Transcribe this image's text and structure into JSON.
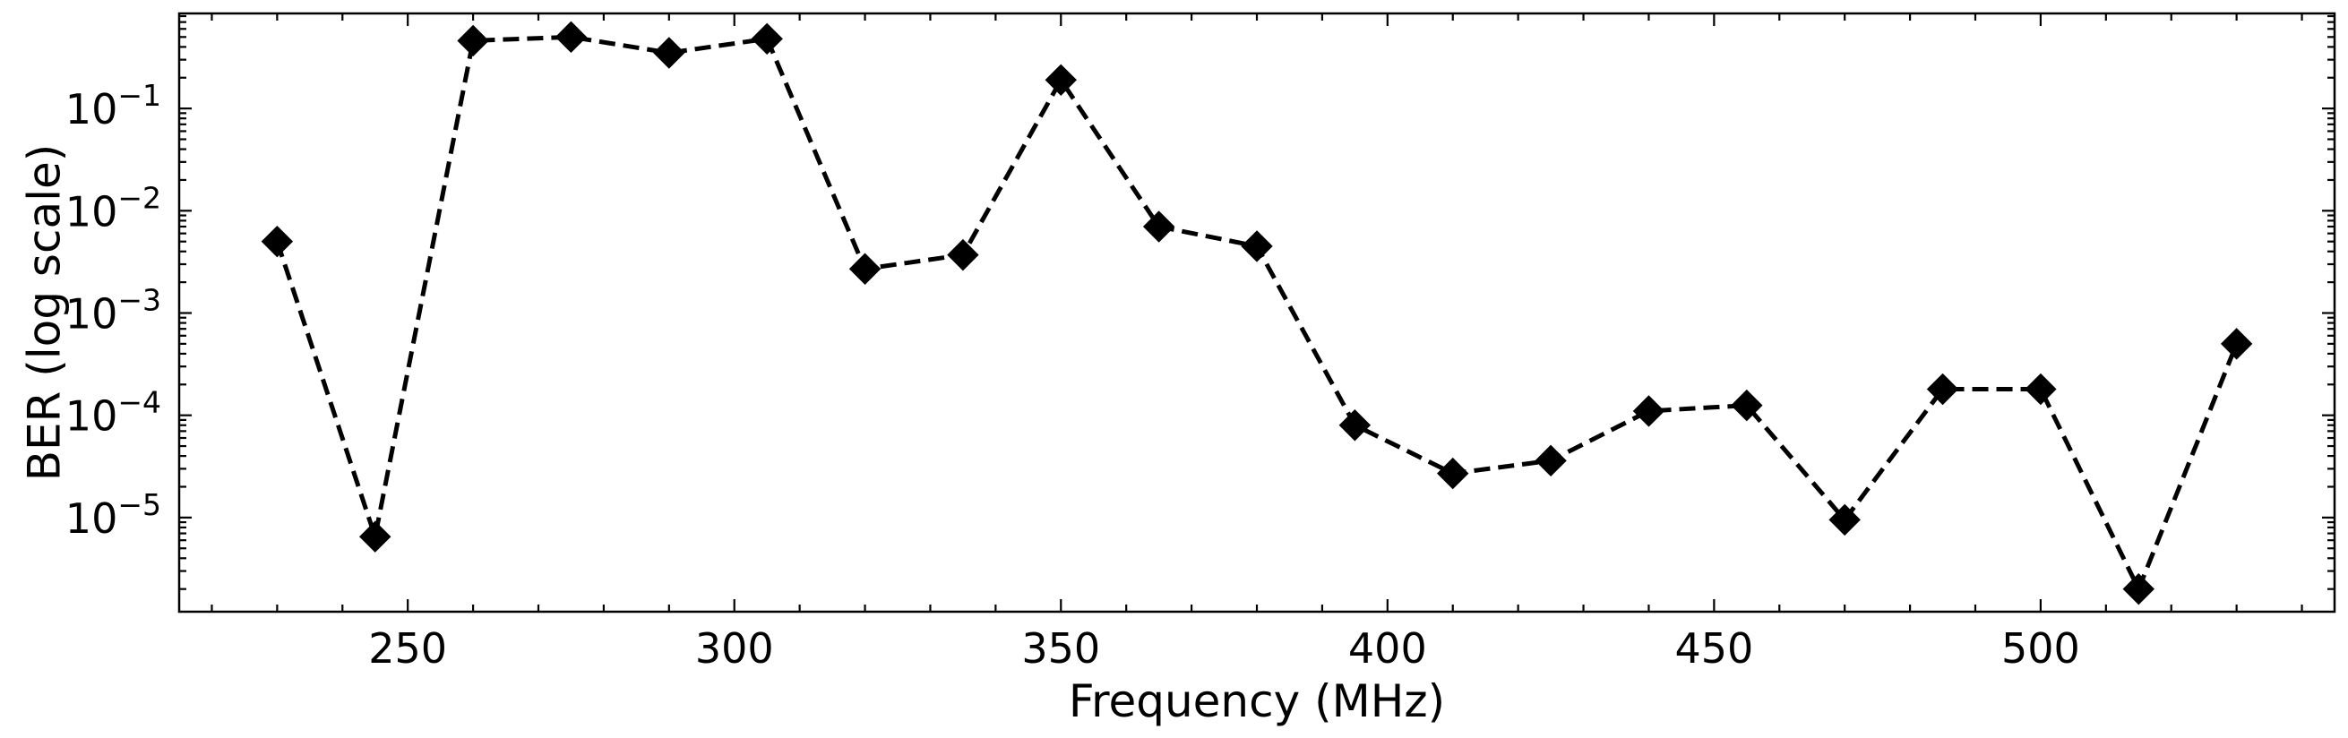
{
  "chart_data": {
    "type": "line",
    "title": "",
    "xlabel": "Frequency (MHz)",
    "ylabel": "BER (log scale)",
    "yscale": "log",
    "xlim": [
      215,
      545
    ],
    "ylim": [
      1.2e-06,
      0.85
    ],
    "grid": false,
    "legend": "none",
    "x_ticks": [
      250,
      300,
      350,
      400,
      450,
      500
    ],
    "y_ticks": [
      {
        "value": 0.1,
        "label": "10^-1"
      },
      {
        "value": 0.01,
        "label": "10^-2"
      },
      {
        "value": 0.001,
        "label": "10^-3"
      },
      {
        "value": 0.0001,
        "label": "10^-4"
      },
      {
        "value": 1e-05,
        "label": "10^-5"
      }
    ],
    "line_style": "dashed",
    "marker": "diamond",
    "color": "#000000",
    "x": [
      230,
      245,
      260,
      275,
      290,
      305,
      320,
      335,
      350,
      365,
      380,
      395,
      410,
      425,
      440,
      455,
      470,
      485,
      500,
      515,
      530
    ],
    "y": [
      0.005,
      6.5e-06,
      0.46,
      0.5,
      0.35,
      0.48,
      0.0027,
      0.0037,
      0.19,
      0.007,
      0.0045,
      8e-05,
      2.7e-05,
      3.6e-05,
      0.00011,
      0.000125,
      9.5e-06,
      0.00018,
      0.00018,
      2e-06,
      0.0005
    ]
  }
}
